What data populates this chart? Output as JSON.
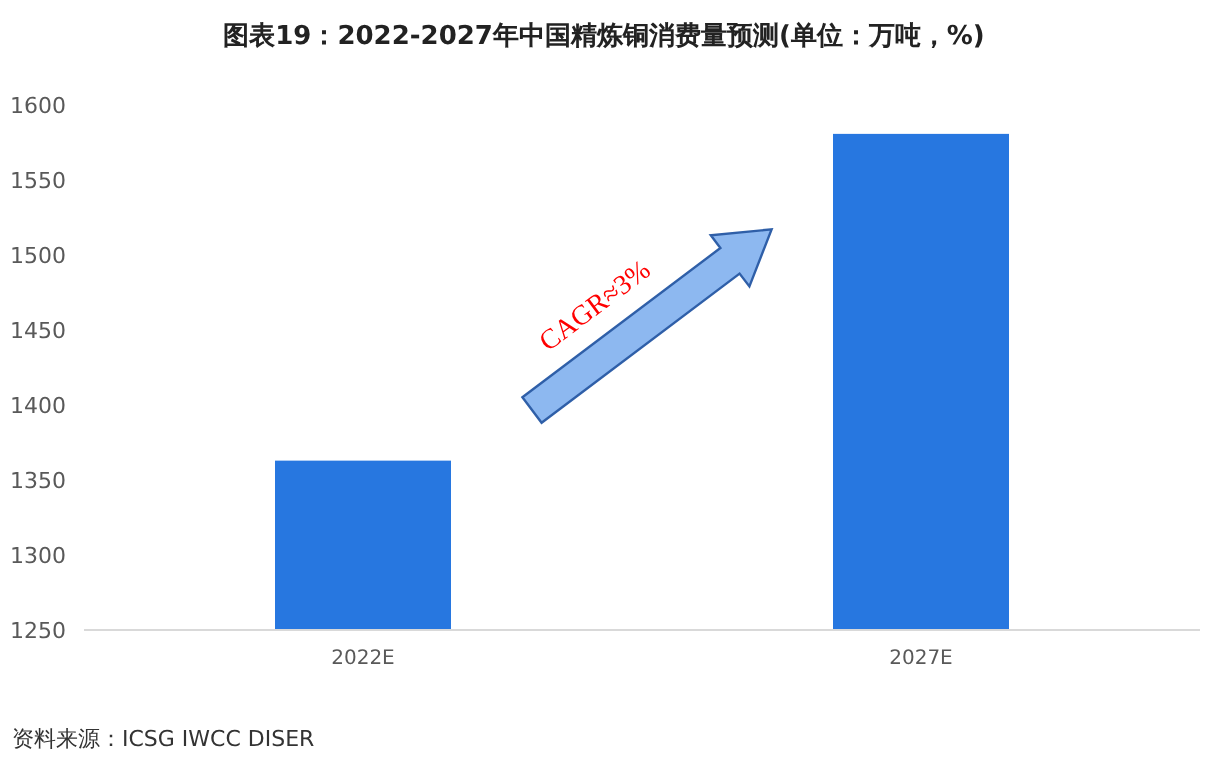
{
  "chart_data": {
    "type": "bar",
    "title": "图表19：2022-2027年中国精炼铜消费量预测(单位：万吨，%)",
    "categories": [
      "2022E",
      "2027E"
    ],
    "values": [
      1363,
      1581
    ],
    "color": "#2777e0",
    "ylim": [
      1250,
      1600
    ],
    "yticks": [
      1250,
      1300,
      1350,
      1400,
      1450,
      1500,
      1550,
      1600
    ],
    "grid": false,
    "annotations": [
      "CAGR≈3%",
      "资料来源：ICSG IWCC DISER"
    ]
  }
}
